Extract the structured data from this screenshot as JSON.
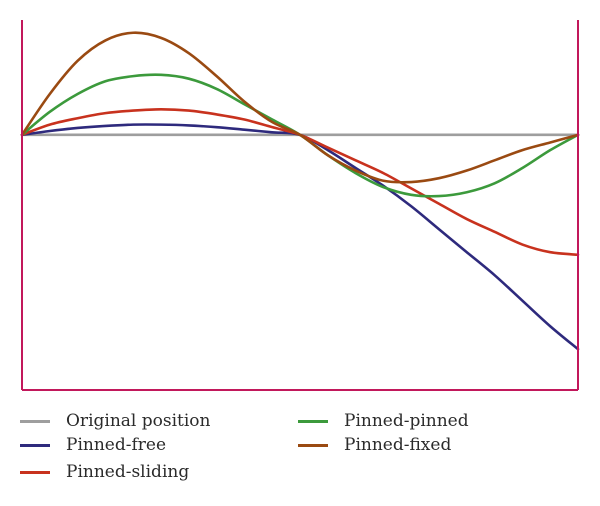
{
  "chart_data": {
    "type": "line",
    "title": "",
    "xlabel": "",
    "ylabel": "",
    "xlim": [
      0,
      1
    ],
    "ylim": [
      -1,
      0.45
    ],
    "grid": false,
    "legend_position": "bottom",
    "frame_color": "#c2185b",
    "x": [
      0,
      0.05,
      0.1,
      0.15,
      0.2,
      0.25,
      0.3,
      0.35,
      0.4,
      0.45,
      0.5,
      0.55,
      0.6,
      0.65,
      0.7,
      0.75,
      0.8,
      0.85,
      0.9,
      0.95,
      1.0
    ],
    "series": [
      {
        "name": "Original position",
        "color": "#9e9e9e",
        "values": [
          0,
          0,
          0,
          0,
          0,
          0,
          0,
          0,
          0,
          0,
          0,
          0,
          0,
          0,
          0,
          0,
          0,
          0,
          0,
          0,
          0
        ]
      },
      {
        "name": "Pinned-free",
        "color": "#2e2a7d",
        "values": [
          0,
          0.015,
          0.027,
          0.035,
          0.04,
          0.04,
          0.037,
          0.03,
          0.02,
          0.01,
          0,
          -0.06,
          -0.13,
          -0.2,
          -0.28,
          -0.37,
          -0.46,
          -0.55,
          -0.65,
          -0.75,
          -0.84
        ]
      },
      {
        "name": "Pinned-sliding",
        "color": "#c8321e",
        "values": [
          0,
          0.04,
          0.065,
          0.085,
          0.095,
          0.1,
          0.095,
          0.08,
          0.06,
          0.03,
          0,
          -0.05,
          -0.1,
          -0.15,
          -0.21,
          -0.27,
          -0.33,
          -0.38,
          -0.43,
          -0.46,
          -0.47
        ]
      },
      {
        "name": "Pinned-pinned",
        "color": "#3c9a3c",
        "values": [
          0,
          0.09,
          0.16,
          0.21,
          0.23,
          0.235,
          0.22,
          0.18,
          0.12,
          0.06,
          0,
          -0.08,
          -0.15,
          -0.205,
          -0.235,
          -0.24,
          -0.225,
          -0.19,
          -0.13,
          -0.06,
          0
        ]
      },
      {
        "name": "Pinned-fixed",
        "color": "#9a4a12",
        "values": [
          0,
          0.16,
          0.29,
          0.37,
          0.4,
          0.38,
          0.32,
          0.23,
          0.13,
          0.05,
          0,
          -0.08,
          -0.14,
          -0.18,
          -0.185,
          -0.17,
          -0.14,
          -0.1,
          -0.06,
          -0.03,
          0
        ]
      }
    ]
  }
}
